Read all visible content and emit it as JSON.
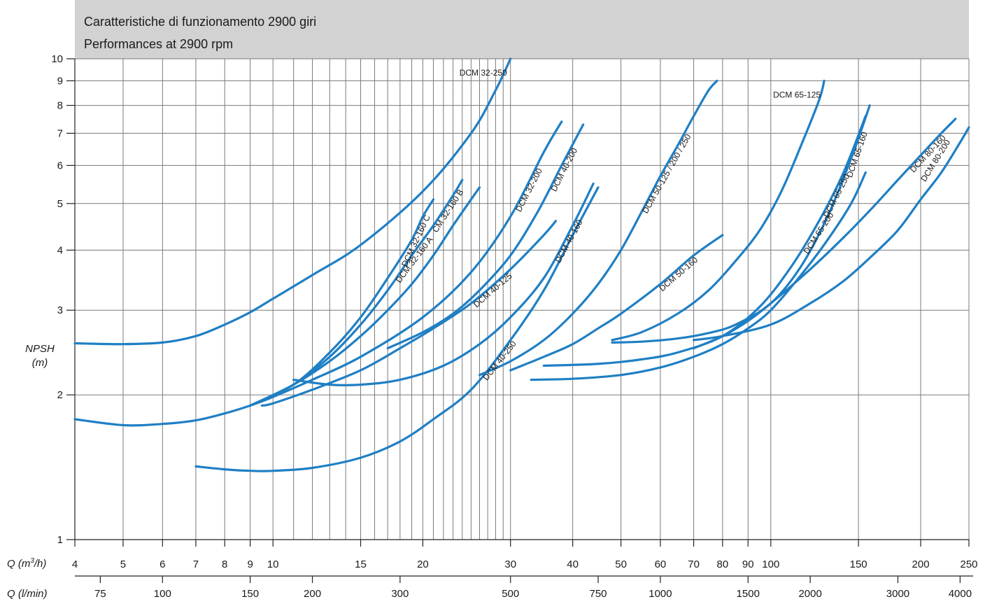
{
  "chart_data": {
    "type": "line",
    "title": "Caratteristiche di funzionamento 2900 giri",
    "subtitle": "Performances at 2900 rpm",
    "ylabel": "NPSH\n(m)",
    "xlabel": "Q (m³/h)",
    "x2label": "Q (l/min)",
    "yscale": "log",
    "xscale": "log",
    "xlim": [
      4,
      250
    ],
    "ylim": [
      1,
      10
    ],
    "grid": true,
    "yticks": [
      1,
      2,
      3,
      4,
      5,
      6,
      7,
      8,
      9,
      10
    ],
    "xticks": [
      4,
      5,
      6,
      7,
      8,
      9,
      10,
      15,
      20,
      30,
      40,
      50,
      60,
      70,
      80,
      90,
      100,
      150,
      200,
      250
    ],
    "x2ticks": [
      75,
      100,
      150,
      200,
      300,
      500,
      750,
      1000,
      1500,
      2000,
      3000,
      4000
    ],
    "colors": {
      "curve": "#1f7fc4",
      "header": "#d2d2d2",
      "grid": "#7a7a7a"
    },
    "series": [
      {
        "name": "DCM 32-250",
        "x": [
          4,
          5,
          6,
          7,
          8,
          9,
          10,
          12,
          15,
          20,
          25,
          28,
          30
        ],
        "y": [
          2.56,
          2.55,
          2.57,
          2.65,
          2.8,
          2.97,
          3.17,
          3.55,
          4.1,
          5.3,
          7.0,
          8.6,
          10.0
        ]
      },
      {
        "name": "DCM 32-160 C",
        "x": [
          9,
          11,
          13,
          15,
          17,
          19,
          20,
          21
        ],
        "y": [
          1.9,
          2.1,
          2.45,
          2.9,
          3.5,
          4.2,
          4.7,
          5.1
        ]
      },
      {
        "name": "CM 32-160 B",
        "x": [
          9,
          11,
          13,
          15,
          17,
          19,
          21,
          23,
          24
        ],
        "y": [
          1.9,
          2.1,
          2.4,
          2.8,
          3.3,
          3.9,
          4.5,
          5.2,
          5.6
        ]
      },
      {
        "name": "DCM 32-160 A",
        "x": [
          9,
          11,
          13,
          15,
          17,
          19,
          21,
          23,
          25,
          26
        ],
        "y": [
          1.9,
          2.1,
          2.35,
          2.65,
          3.0,
          3.4,
          3.9,
          4.5,
          5.1,
          5.4
        ]
      },
      {
        "name": "DCM 32-200",
        "x": [
          4,
          5,
          6,
          7,
          8,
          9,
          10,
          12,
          15,
          20,
          25,
          30,
          35,
          38
        ],
        "y": [
          1.78,
          1.73,
          1.74,
          1.77,
          1.83,
          1.9,
          1.98,
          2.15,
          2.4,
          2.9,
          3.6,
          4.7,
          6.4,
          7.4
        ]
      },
      {
        "name": "DCM 40-200",
        "x": [
          17,
          20,
          23,
          26,
          30,
          34,
          38,
          42
        ],
        "y": [
          2.5,
          2.7,
          2.95,
          3.3,
          3.9,
          4.8,
          6.0,
          7.3
        ]
      },
      {
        "name": "DCM 40-125",
        "x": [
          9.5,
          10,
          12,
          15,
          18,
          21,
          25,
          30,
          35,
          37
        ],
        "y": [
          1.9,
          1.92,
          2.05,
          2.25,
          2.5,
          2.75,
          3.1,
          3.65,
          4.3,
          4.6
        ]
      },
      {
        "name": "DCM 40-160",
        "x": [
          11,
          13,
          15,
          18,
          22,
          26,
          30,
          35,
          40,
          44
        ],
        "y": [
          2.15,
          2.1,
          2.1,
          2.15,
          2.3,
          2.55,
          2.9,
          3.5,
          4.5,
          5.5
        ]
      },
      {
        "name": "DCM 40-250",
        "x": [
          7,
          8,
          9,
          10,
          12,
          15,
          18,
          21,
          25,
          30,
          35,
          40,
          45
        ],
        "y": [
          1.42,
          1.4,
          1.39,
          1.39,
          1.41,
          1.48,
          1.6,
          1.78,
          2.05,
          2.6,
          3.3,
          4.3,
          5.4
        ]
      },
      {
        "name": "DCM 50-125 / 200 / 250",
        "x": [
          26,
          30,
          35,
          40,
          45,
          50,
          55,
          60,
          65,
          70,
          75,
          78
        ],
        "y": [
          2.2,
          2.35,
          2.6,
          2.95,
          3.4,
          4.0,
          4.8,
          5.7,
          6.6,
          7.6,
          8.6,
          9.0
        ]
      },
      {
        "name": "DCM 50-160",
        "x": [
          30,
          35,
          40,
          45,
          50,
          60,
          70,
          80
        ],
        "y": [
          2.25,
          2.4,
          2.55,
          2.75,
          2.95,
          3.4,
          3.9,
          4.3
        ]
      },
      {
        "name": "DCM 65-125",
        "x": [
          48,
          55,
          65,
          75,
          85,
          95,
          105,
          115,
          125,
          128
        ],
        "y": [
          2.6,
          2.7,
          2.95,
          3.3,
          3.8,
          4.4,
          5.3,
          6.6,
          8.2,
          9.0
        ]
      },
      {
        "name": "DCM 65-250",
        "x": [
          35,
          45,
          55,
          65,
          80,
          95,
          110,
          125,
          140,
          155
        ],
        "y": [
          2.3,
          2.32,
          2.37,
          2.45,
          2.65,
          3.05,
          3.7,
          4.6,
          5.8,
          7.6
        ]
      },
      {
        "name": "DCM 65-160",
        "x": [
          48,
          55,
          65,
          75,
          85,
          100,
          115,
          130,
          145,
          158
        ],
        "y": [
          2.57,
          2.58,
          2.62,
          2.69,
          2.8,
          3.1,
          3.7,
          4.7,
          6.2,
          8.0
        ]
      },
      {
        "name": "DCM 65-200",
        "x": [
          33,
          40,
          50,
          60,
          70,
          80,
          90,
          100,
          115,
          130,
          145,
          155
        ],
        "y": [
          2.15,
          2.16,
          2.2,
          2.28,
          2.4,
          2.55,
          2.75,
          3.0,
          3.55,
          4.2,
          5.0,
          5.8
        ]
      },
      {
        "name": "DCM 80-160",
        "x": [
          70,
          80,
          90,
          100,
          120,
          140,
          160,
          180,
          200,
          220,
          235
        ],
        "y": [
          2.5,
          2.65,
          2.85,
          3.1,
          3.65,
          4.25,
          4.9,
          5.6,
          6.3,
          7.0,
          7.5
        ]
      },
      {
        "name": "DCM 80-200",
        "x": [
          70,
          80,
          100,
          120,
          140,
          160,
          180,
          200,
          220,
          240,
          250
        ],
        "y": [
          2.6,
          2.65,
          2.8,
          3.1,
          3.45,
          3.9,
          4.4,
          5.1,
          5.8,
          6.7,
          7.2
        ]
      }
    ],
    "curve_labels": [
      {
        "text": "DCM 32-250",
        "series": 0
      },
      {
        "text": "DCM 32-160 C",
        "series": 1
      },
      {
        "text": "CM 32-160 B",
        "series": 2
      },
      {
        "text": "DCM 32-160 A",
        "series": 3
      },
      {
        "text": "DCM 32-200",
        "series": 4
      },
      {
        "text": "DCM 40-200",
        "series": 5
      },
      {
        "text": "DCM 40-125",
        "series": 6
      },
      {
        "text": "DCM 40-160",
        "series": 7
      },
      {
        "text": "DCM 40-250",
        "series": 8
      },
      {
        "text": "DCM 50-125 / 200 / 250",
        "series": 9
      },
      {
        "text": "DCM 50-160",
        "series": 10
      },
      {
        "text": "DCM 65-125",
        "series": 11
      },
      {
        "text": "DCM 65-250",
        "series": 12
      },
      {
        "text": "DCM 65-160",
        "series": 13
      },
      {
        "text": "DCM 65-200",
        "series": 14
      },
      {
        "text": "DCM 80-160",
        "series": 15
      },
      {
        "text": "DCM 80-200",
        "series": 16
      }
    ]
  }
}
